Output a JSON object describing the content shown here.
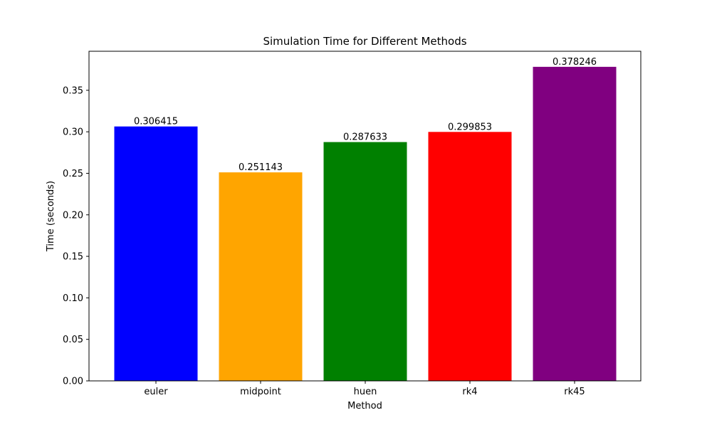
{
  "chart_data": {
    "type": "bar",
    "title": "Simulation Time for Different Methods",
    "xlabel": "Method",
    "ylabel": "Time (seconds)",
    "categories": [
      "euler",
      "midpoint",
      "huen",
      "rk4",
      "rk45"
    ],
    "values": [
      0.306415,
      0.251143,
      0.287633,
      0.299853,
      0.378246
    ],
    "value_labels": [
      "0.306415",
      "0.251143",
      "0.287633",
      "0.299853",
      "0.378246"
    ],
    "colors": [
      "#0000ff",
      "#ffa500",
      "#008000",
      "#ff0000",
      "#800080"
    ],
    "ylim": [
      0,
      0.397
    ],
    "yticks": [
      0,
      0.05,
      0.1,
      0.15,
      0.2,
      0.25,
      0.3,
      0.35
    ],
    "ytick_labels": [
      "0.00",
      "0.05",
      "0.10",
      "0.15",
      "0.20",
      "0.25",
      "0.30",
      "0.35"
    ],
    "grid": false,
    "legend": "none"
  }
}
